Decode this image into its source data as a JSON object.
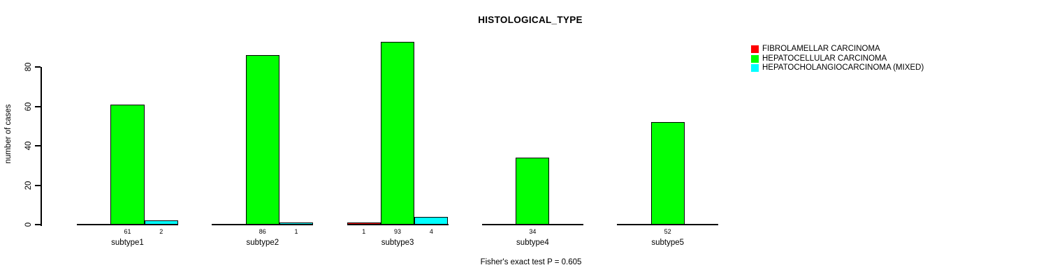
{
  "title": "HISTOLOGICAL_TYPE",
  "y_axis_label": "number of cases",
  "footnote": "Fisher's exact test P = 0.605",
  "chart_data": {
    "type": "bar",
    "title": "HISTOLOGICAL_TYPE",
    "xlabel": "",
    "ylabel": "number of cases",
    "categories": [
      "subtype1",
      "subtype2",
      "subtype3",
      "subtype4",
      "subtype5"
    ],
    "series": [
      {
        "name": "FIBROLAMELLAR CARCINOMA",
        "color": "#ff0000",
        "values": [
          0,
          0,
          1,
          0,
          0
        ]
      },
      {
        "name": "HEPATOCELLULAR CARCINOMA",
        "color": "#00ff00",
        "values": [
          61,
          86,
          93,
          34,
          52
        ]
      },
      {
        "name": "HEPATOCHOLANGIOCARCINOMA (MIXED)",
        "color": "#00ffff",
        "values": [
          2,
          1,
          4,
          0,
          0
        ]
      }
    ],
    "yticks": [
      0,
      20,
      40,
      60,
      80
    ],
    "ylim": [
      0,
      93
    ],
    "grid": false,
    "bar_value_labels_visible": true,
    "zero_values_unlabeled": true,
    "legend_position": "top-right",
    "annotation": "Fisher's exact test P = 0.605"
  },
  "colors": {
    "axis": "#000000",
    "background": "#ffffff",
    "text": "#000000"
  }
}
